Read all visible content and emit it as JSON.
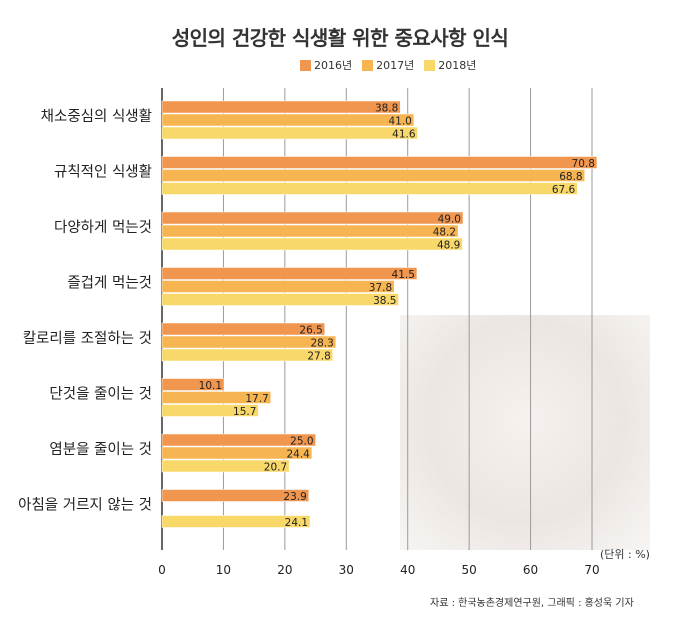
{
  "chart_data": {
    "type": "bar",
    "orientation": "horizontal",
    "title": "성인의 건강한 식생활 위한 중요사항 인식",
    "unit_label": "(단위 : %)",
    "source": "자료 : 한국농촌경제연구원, 그래픽 : 홍성욱 기자",
    "categories": [
      "채소중심의 식생활",
      "규칙적인 식생활",
      "다양하게 먹는것",
      "즐겁게 먹는것",
      "칼로리를 조절하는 것",
      "단것을 줄이는 것",
      "염분을 줄이는 것",
      "아침을 거르지 않는 것"
    ],
    "series": [
      {
        "name": "2016년",
        "color": "#f0964f",
        "values": [
          38.8,
          70.8,
          49.0,
          41.5,
          26.5,
          10.1,
          25.0,
          23.9
        ],
        "labels": [
          "38.8",
          "70.8",
          "49.0",
          "41.5",
          "26.5",
          "10.1",
          "25.0",
          "23.9"
        ]
      },
      {
        "name": "2017년",
        "color": "#f7b552",
        "values": [
          41.0,
          68.8,
          48.2,
          37.8,
          28.3,
          17.7,
          24.4,
          null
        ],
        "labels": [
          "41.0",
          "68.8",
          "48.2",
          "37.8",
          "28.3",
          "17.7",
          "24.4",
          ""
        ]
      },
      {
        "name": "2018년",
        "color": "#f9d86a",
        "values": [
          41.6,
          67.6,
          48.9,
          38.5,
          27.8,
          15.7,
          20.7,
          24.1
        ],
        "labels": [
          "41.6",
          "67.6",
          "48.9",
          "38.5",
          "27.8",
          "15.7",
          "20.7",
          "24.1"
        ]
      }
    ],
    "xlim": [
      0,
      70
    ],
    "xticks": [
      "0",
      "10",
      "20",
      "30",
      "40",
      "50",
      "60",
      "70"
    ],
    "grid": true,
    "legend_position": "top-center"
  }
}
